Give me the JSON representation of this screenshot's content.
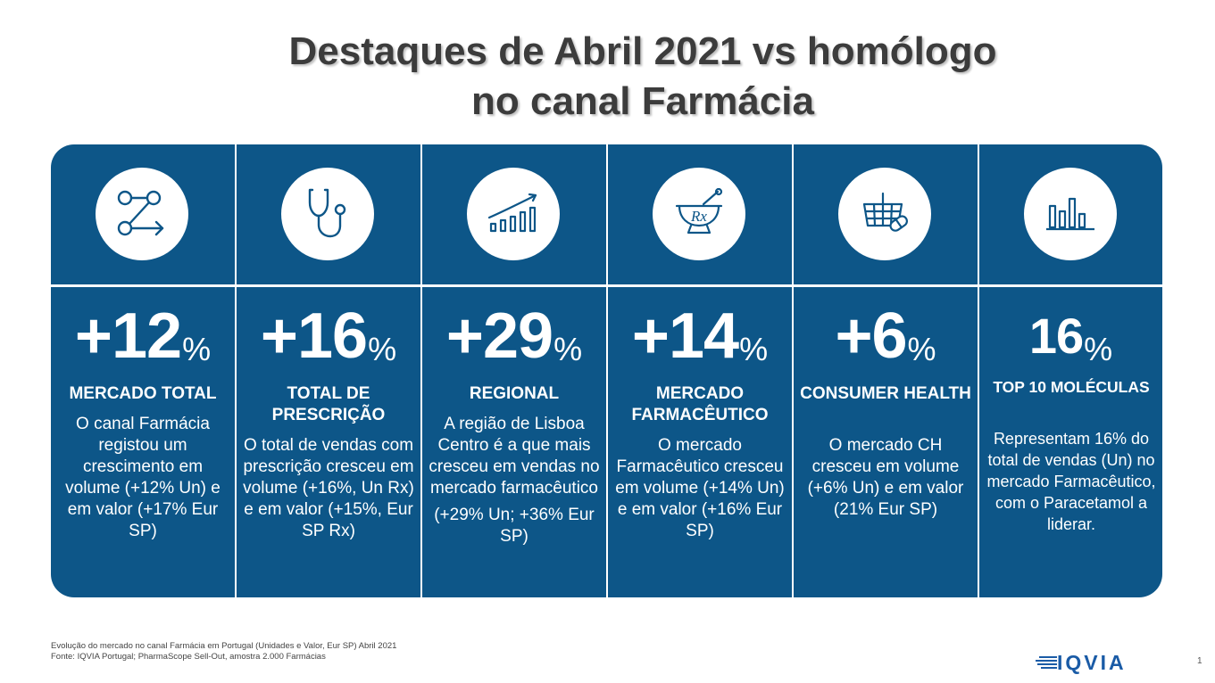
{
  "title": {
    "line1": "Destaques de Abril 2021 vs homólogo",
    "line2": "no canal Farmácia"
  },
  "colors": {
    "panel_blue": "#0d5688",
    "title_gray": "#3c3c3c",
    "logo_blue": "#1a5ba6"
  },
  "cards": [
    {
      "icon": "flow-arrow-icon",
      "value": "+12",
      "unit": "%",
      "heading": "MERCADO TOTAL",
      "desc": [
        "O canal Farmácia registou um crescimento em volume (+12% Un) e em valor (+17% Eur SP)"
      ],
      "desc_top": 142
    },
    {
      "icon": "stethoscope-icon",
      "value": "+16",
      "unit": "%",
      "heading": "TOTAL DE PRESCRIÇÃO",
      "desc": [
        "O total de vendas com prescrição cresceu em volume (+16%, Un Rx) e em valor (+15%, Eur SP Rx)"
      ],
      "desc_top": 166
    },
    {
      "icon": "growth-chart-icon",
      "value": "+29",
      "unit": "%",
      "heading": "REGIONAL",
      "desc": [
        "A região de Lisboa Centro é a que mais cresceu em vendas no mercado farmacêutico",
        "(+29% Un; +36% Eur SP)"
      ],
      "desc_top": 142
    },
    {
      "icon": "mortar-rx-icon",
      "value": "+14",
      "unit": "%",
      "heading": "MERCADO FARMACÊUTICO",
      "desc": [
        "O mercado Farmacêutico cresceu em volume (+14% Un) e em valor (+16% Eur SP)"
      ],
      "desc_top": 166
    },
    {
      "icon": "basket-pill-icon",
      "value": "+6",
      "unit": "%",
      "heading": "CONSUMER HEALTH",
      "desc": [
        "O mercado CH cresceu em volume (+6% Un) e em valor (21% Eur SP)"
      ],
      "desc_top": 166
    },
    {
      "icon": "bar-chart-icon",
      "value": "16",
      "unit": "%",
      "heading": "TOP 10 MOLÉCULAS",
      "desc": [
        "Representam 16% do total de vendas (Un) no mercado Farmacêutico, com o Paracetamol a liderar."
      ],
      "desc_top": 158
    }
  ],
  "footnote": {
    "line1": "Evolução do mercado no canal Farmácia em Portugal (Unidades e Valor, Eur SP) Abril 2021",
    "line2": "Fonte: IQVIA Portugal; PharmaScope Sell-Out, amostra 2.000 Farmácias"
  },
  "logo": {
    "text": "IQVIA"
  },
  "page_number": "1"
}
